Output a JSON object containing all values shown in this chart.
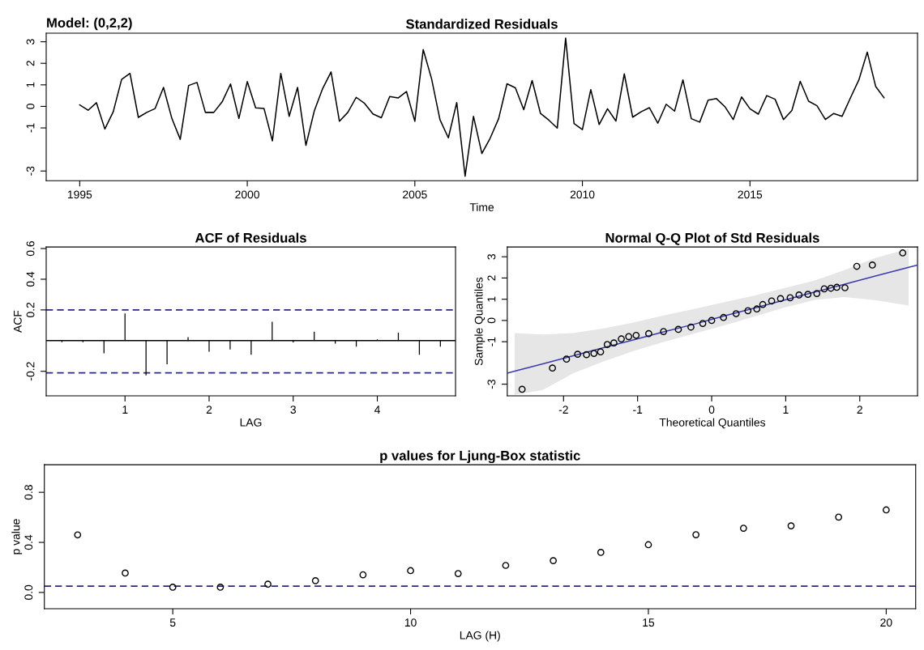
{
  "chart_data": [
    {
      "type": "line",
      "title": "Standardized Residuals",
      "xlabel": "Time",
      "annotations": [
        "Model: (0,2,2)"
      ],
      "marker": "none",
      "line_style": "solid",
      "x": [
        1995.0,
        1995.25,
        1995.5,
        1995.75,
        1996.0,
        1996.25,
        1996.5,
        1996.75,
        1997.0,
        1997.25,
        1997.5,
        1997.75,
        1998.0,
        1998.25,
        1998.5,
        1998.75,
        1999.0,
        1999.25,
        1999.5,
        1999.75,
        2000.0,
        2000.25,
        2000.5,
        2000.75,
        2001.0,
        2001.25,
        2001.5,
        2001.75,
        2002.0,
        2002.25,
        2002.5,
        2002.75,
        2003.0,
        2003.25,
        2003.5,
        2003.75,
        2004.0,
        2004.25,
        2004.5,
        2004.75,
        2005.0,
        2005.25,
        2005.5,
        2005.75,
        2006.0,
        2006.25,
        2006.5,
        2006.75,
        2007.0,
        2007.25,
        2007.5,
        2007.75,
        2008.0,
        2008.25,
        2008.5,
        2008.75,
        2009.0,
        2009.25,
        2009.5,
        2009.75,
        2010.0,
        2010.25,
        2010.5,
        2010.75,
        2011.0,
        2011.25,
        2011.5,
        2011.75,
        2012.0,
        2012.25,
        2012.5,
        2012.75,
        2013.0,
        2013.25,
        2013.5,
        2013.75,
        2014.0,
        2014.25,
        2014.5,
        2014.75,
        2015.0,
        2015.25,
        2015.5,
        2015.75,
        2016.0,
        2016.25,
        2016.5,
        2016.75,
        2017.0,
        2017.25,
        2017.5,
        2017.75,
        2018.0,
        2018.25,
        2018.5,
        2018.75,
        2019.0
      ],
      "series": [
        {
          "color": "#000000",
          "values": [
            0.07,
            -0.18,
            0.17,
            -1.05,
            -0.25,
            1.25,
            1.53,
            -0.51,
            -0.28,
            -0.1,
            0.88,
            -0.56,
            -1.53,
            0.97,
            1.11,
            -0.28,
            -0.28,
            0.21,
            1.04,
            -0.56,
            1.15,
            -0.07,
            -0.1,
            -1.6,
            1.53,
            -0.46,
            0.88,
            -1.81,
            -0.21,
            0.83,
            1.6,
            -0.69,
            -0.28,
            0.42,
            0.14,
            -0.35,
            -0.53,
            0.46,
            0.39,
            0.69,
            -0.69,
            2.64,
            1.28,
            -0.62,
            -1.46,
            0.18,
            -3.24,
            -0.46,
            -2.19,
            -1.47,
            -0.57,
            1.05,
            0.86,
            -0.15,
            1.2,
            -0.33,
            -0.64,
            -1.01,
            3.17,
            -0.8,
            -1.08,
            0.78,
            -0.84,
            -0.11,
            -0.68,
            1.51,
            -0.5,
            -0.25,
            -0.06,
            -0.78,
            0.1,
            -0.22,
            1.23,
            -0.57,
            -0.73,
            0.29,
            0.36,
            -0.01,
            -0.61,
            0.44,
            -0.11,
            -0.36,
            0.5,
            0.33,
            -0.61,
            -0.19,
            1.16,
            0.24,
            0.03,
            -0.61,
            -0.33,
            -0.46,
            0.4,
            1.23,
            2.52,
            0.93,
            0.4
          ]
        }
      ],
      "xlim": [
        1994.0,
        2020.0
      ],
      "ylim": [
        -3.45,
        3.4
      ],
      "xticks": [
        1995,
        2000,
        2005,
        2010,
        2015
      ],
      "yticks": [
        -3,
        -1,
        0,
        1,
        2,
        3
      ]
    },
    {
      "type": "bar",
      "title": "ACF of Residuals",
      "xlabel": "LAG",
      "ylabel": "ACF",
      "x": [
        0.25,
        0.5,
        0.75,
        1.0,
        1.25,
        1.5,
        1.75,
        2.0,
        2.25,
        2.5,
        2.75,
        3.0,
        3.25,
        3.5,
        3.75,
        4.0,
        4.25,
        4.5,
        4.75
      ],
      "series": [
        {
          "color": "#000000",
          "values": [
            -0.01,
            -0.01,
            -0.083,
            0.177,
            -0.227,
            -0.154,
            0.023,
            -0.073,
            -0.058,
            -0.092,
            0.123,
            -0.012,
            0.058,
            -0.019,
            -0.04,
            0.008,
            0.052,
            -0.092,
            -0.04
          ]
        }
      ],
      "ref_lines": [
        {
          "axis": "y",
          "value": 0.2,
          "color": "#2a2a80",
          "line_style": "dashed"
        },
        {
          "axis": "y",
          "value": -0.21,
          "color": "#2a2a80",
          "line_style": "dashed"
        },
        {
          "axis": "y",
          "value": 0,
          "color": "#000000",
          "line_style": "solid"
        }
      ],
      "xlim": [
        0.063,
        4.93
      ],
      "ylim": [
        -0.36,
        0.61
      ],
      "xticks": [
        1,
        2,
        3,
        4
      ],
      "yticks": [
        -0.2,
        0.2,
        0.4,
        0.6
      ]
    },
    {
      "type": "scatter",
      "title": "Normal Q-Q Plot of Std Residuals",
      "xlabel": "Theoretical Quantiles",
      "ylabel": "Sample Quantiles",
      "marker": "circle",
      "series": [
        {
          "type": "line",
          "color": "#3b3bb0",
          "marker": "none",
          "x": [
            -2.76,
            -2.66,
            -2.28,
            -1.87,
            -1.46,
            -1.06,
            -0.65,
            -0.24,
            0.16,
            0.57,
            0.98,
            1.38,
            1.79,
            2.2,
            2.66,
            2.78
          ],
          "values": [
            -2.48,
            -2.39,
            -2.04,
            -1.66,
            -1.28,
            -0.92,
            -0.54,
            -0.18,
            0.21,
            0.58,
            0.96,
            1.33,
            1.7,
            2.08,
            2.5,
            2.61
          ],
          "lower": [
            null,
            -3.5,
            -3.27,
            -2.49,
            -1.93,
            -1.44,
            -1.01,
            -0.62,
            -0.24,
            0.18,
            0.61,
            0.96,
            1.1,
            0.96,
            0.7,
            null
          ],
          "upper": [
            null,
            -0.59,
            -0.66,
            -0.59,
            -0.38,
            -0.1,
            0.23,
            0.54,
            0.85,
            1.17,
            1.52,
            1.87,
            2.37,
            2.93,
            3.38,
            null
          ]
        },
        {
          "color": "#000000",
          "x": [
            -2.56,
            -2.15,
            -1.96,
            -1.81,
            -1.69,
            -1.59,
            -1.5,
            -1.41,
            -1.32,
            -1.22,
            -1.12,
            -1.02,
            -0.85,
            -0.65,
            -0.45,
            -0.28,
            -0.12,
            0.0,
            0.16,
            0.33,
            0.49,
            0.61,
            0.69,
            0.81,
            0.93,
            1.06,
            1.18,
            1.3,
            1.42,
            1.52,
            1.61,
            1.69,
            1.8,
            1.96,
            2.17,
            2.58
          ],
          "values": [
            -3.24,
            -2.24,
            -1.82,
            -1.59,
            -1.61,
            -1.55,
            -1.48,
            -1.13,
            -1.06,
            -0.87,
            -0.76,
            -0.7,
            -0.62,
            -0.52,
            -0.42,
            -0.31,
            -0.14,
            0.0,
            0.14,
            0.32,
            0.46,
            0.54,
            0.75,
            0.92,
            1.03,
            1.07,
            1.2,
            1.23,
            1.27,
            1.49,
            1.52,
            1.56,
            1.54,
            2.55,
            2.61,
            3.18
          ]
        }
      ],
      "xlim": [
        -2.76,
        2.78
      ],
      "ylim": [
        -3.55,
        3.46
      ],
      "xticks": [
        -2,
        -1,
        0,
        1,
        2
      ],
      "yticks": [
        -3,
        -1,
        0,
        1,
        2,
        3
      ]
    },
    {
      "type": "scatter",
      "title": "p values for Ljung-Box statistic",
      "xlabel": "LAG (H)",
      "ylabel": "p value",
      "marker": "circle",
      "x": [
        3,
        4,
        5,
        6,
        7,
        8,
        9,
        10,
        11,
        12,
        13,
        14,
        15,
        16,
        17,
        18,
        19,
        20
      ],
      "series": [
        {
          "color": "#000000",
          "values": [
            0.46,
            0.155,
            0.042,
            0.042,
            0.066,
            0.094,
            0.141,
            0.174,
            0.151,
            0.216,
            0.254,
            0.32,
            0.381,
            0.461,
            0.513,
            0.532,
            0.602,
            0.659
          ]
        }
      ],
      "ref_lines": [
        {
          "axis": "y",
          "value": 0.05,
          "color": "#2a2a80",
          "line_style": "dashed"
        }
      ],
      "xlim": [
        2.3,
        20.62
      ],
      "ylim": [
        -0.13,
        1.02
      ],
      "xticks": [
        5,
        10,
        15,
        20
      ],
      "yticks": [
        {
          "value": 0,
          "label": "0.0"
        },
        0.4,
        0.8
      ]
    }
  ]
}
